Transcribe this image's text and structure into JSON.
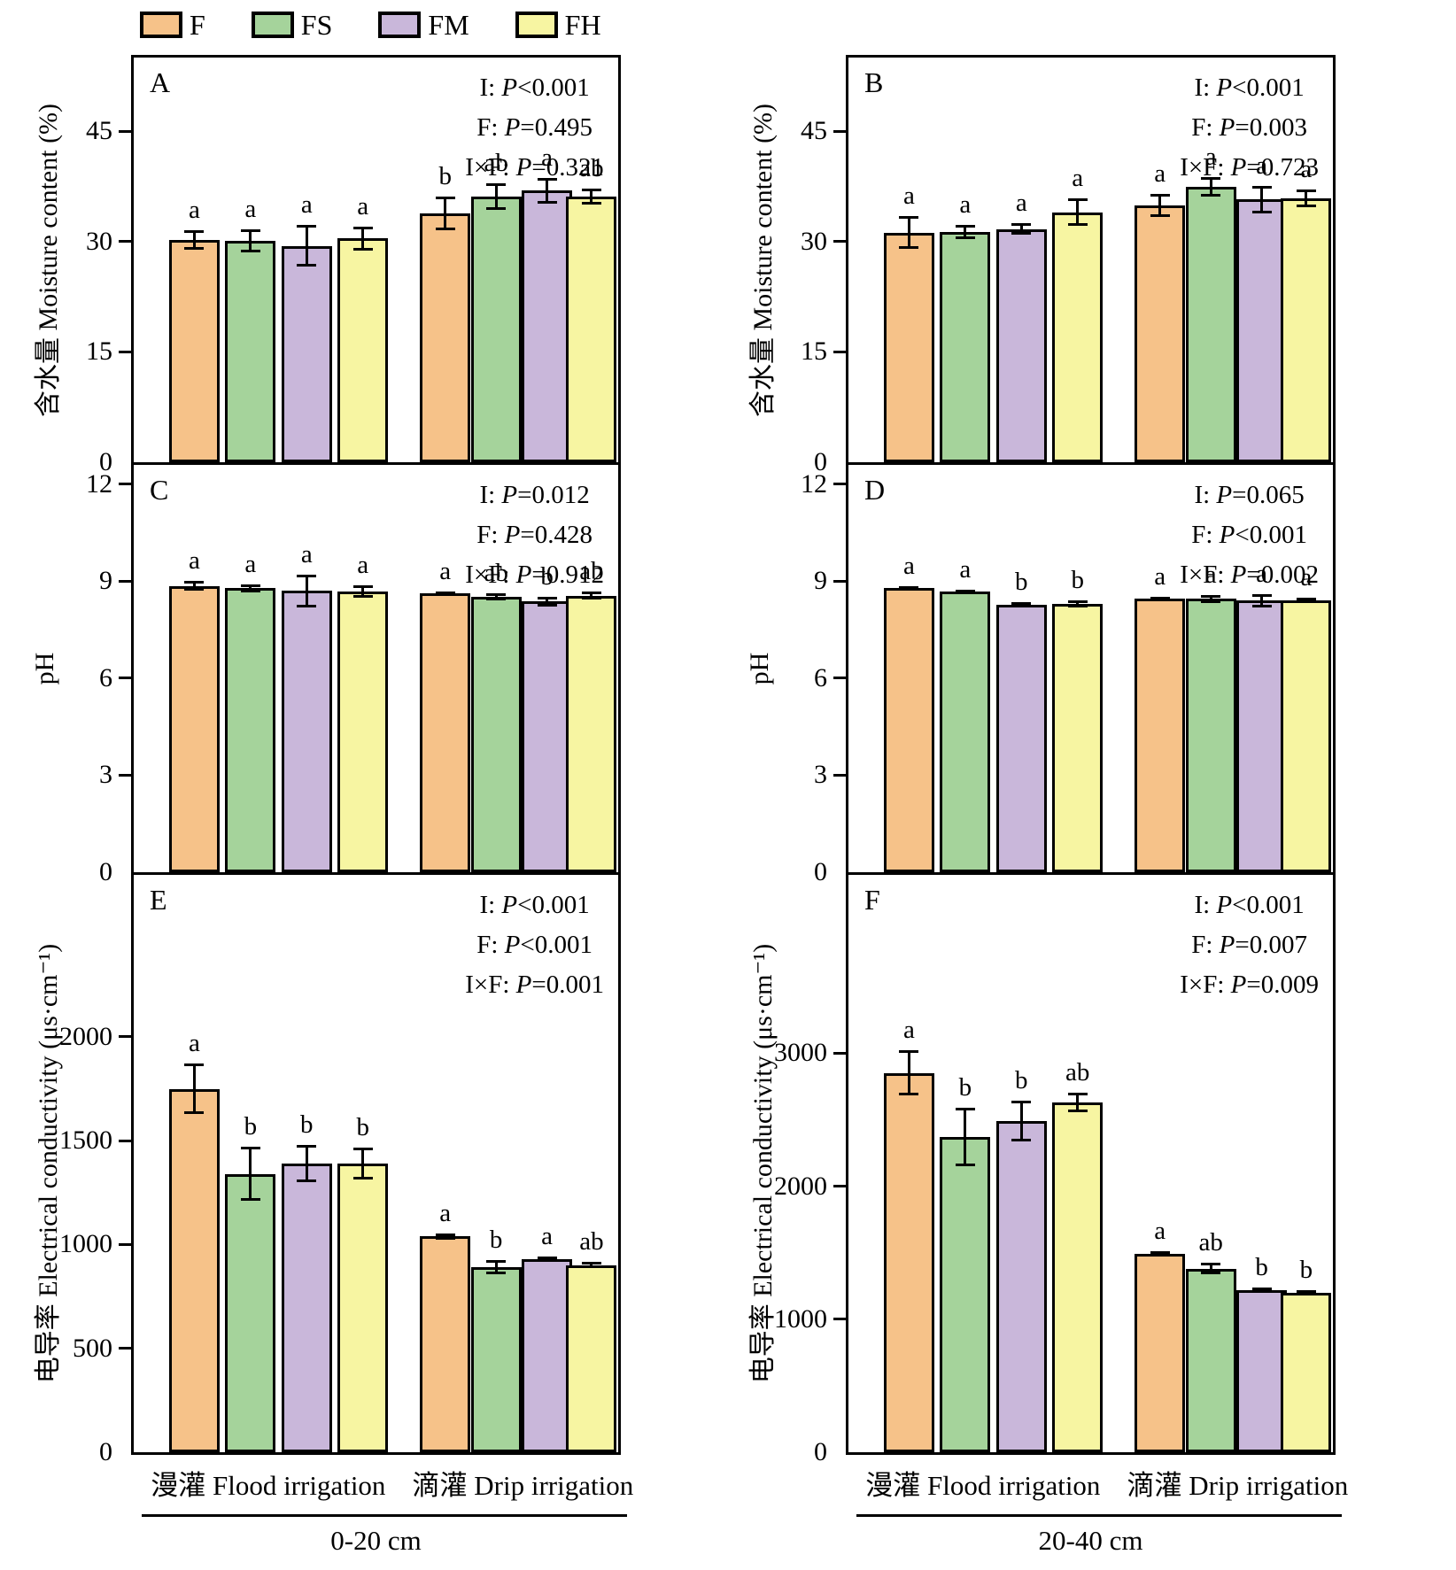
{
  "legend": {
    "items": [
      {
        "label": "F",
        "color": "#F6C289"
      },
      {
        "label": "FS",
        "color": "#A5D39B"
      },
      {
        "label": "FM",
        "color": "#C9B7DA"
      },
      {
        "label": "FH",
        "color": "#F7F5A2"
      }
    ]
  },
  "footer": {
    "columns": [
      {
        "flood": "漫灌 Flood irrigation",
        "drip": "滴灌 Drip irrigation",
        "depth": "0-20 cm"
      },
      {
        "flood": "漫灌 Flood irrigation",
        "drip": "滴灌 Drip irrigation",
        "depth": "20-40 cm"
      }
    ]
  },
  "chart_data": [
    {
      "type": "bar",
      "id": "A",
      "ylabel": "含水量 Moisture content (%)",
      "ymax": 55,
      "yticks": [
        0,
        15,
        30,
        45
      ],
      "stats": [
        "I: P<0.001",
        "F: P=0.495",
        "I×F: P=0.321"
      ],
      "groups": [
        {
          "label": "漫灌 Flood irrigation",
          "bars": [
            {
              "series": "F",
              "value": 30.2,
              "err": 1.3,
              "letter": "a"
            },
            {
              "series": "FS",
              "value": 30.1,
              "err": 1.6,
              "letter": "a"
            },
            {
              "series": "FM",
              "value": 29.4,
              "err": 2.8,
              "letter": "a"
            },
            {
              "series": "FH",
              "value": 30.4,
              "err": 1.6,
              "letter": "a"
            }
          ]
        },
        {
          "label": "滴灌 Drip irrigation",
          "bars": [
            {
              "series": "F",
              "value": 33.8,
              "err": 2.3,
              "letter": "b"
            },
            {
              "series": "FS",
              "value": 36.1,
              "err": 1.8,
              "letter": "ab"
            },
            {
              "series": "FM",
              "value": 36.9,
              "err": 1.7,
              "letter": "a"
            },
            {
              "series": "FH",
              "value": 36.1,
              "err": 1.1,
              "letter": "ab"
            }
          ]
        }
      ]
    },
    {
      "type": "bar",
      "id": "B",
      "ylabel": "含水量 Moisture content (%)",
      "ymax": 55,
      "yticks": [
        0,
        15,
        30,
        45
      ],
      "stats": [
        "I: P<0.001",
        "F: P=0.003",
        "I×F: P=0.723"
      ],
      "groups": [
        {
          "label": "漫灌 Flood irrigation",
          "bars": [
            {
              "series": "F",
              "value": 31.2,
              "err": 2.2,
              "letter": "a"
            },
            {
              "series": "FS",
              "value": 31.3,
              "err": 1.0,
              "letter": "a"
            },
            {
              "series": "FM",
              "value": 31.7,
              "err": 0.8,
              "letter": "a"
            },
            {
              "series": "FH",
              "value": 34.0,
              "err": 1.9,
              "letter": "a"
            }
          ]
        },
        {
          "label": "滴灌 Drip irrigation",
          "bars": [
            {
              "series": "F",
              "value": 34.9,
              "err": 1.6,
              "letter": "a"
            },
            {
              "series": "FS",
              "value": 37.4,
              "err": 1.3,
              "letter": "a"
            },
            {
              "series": "FM",
              "value": 35.7,
              "err": 1.9,
              "letter": "a"
            },
            {
              "series": "FH",
              "value": 35.9,
              "err": 1.2,
              "letter": "a"
            }
          ]
        }
      ]
    },
    {
      "type": "bar",
      "id": "C",
      "ylabel": "pH",
      "ymax": 12.6,
      "yticks": [
        0,
        3,
        6,
        9,
        12
      ],
      "stats": [
        "I: P=0.012",
        "F: P=0.428",
        "I×F: P=0.912"
      ],
      "groups": [
        {
          "label": "漫灌 Flood irrigation",
          "bars": [
            {
              "series": "F",
              "value": 8.85,
              "err": 0.15,
              "letter": "a"
            },
            {
              "series": "FS",
              "value": 8.78,
              "err": 0.12,
              "letter": "a"
            },
            {
              "series": "FM",
              "value": 8.7,
              "err": 0.5,
              "letter": "a"
            },
            {
              "series": "FH",
              "value": 8.68,
              "err": 0.2,
              "letter": "a"
            }
          ]
        },
        {
          "label": "滴灌 Drip irrigation",
          "bars": [
            {
              "series": "F",
              "value": 8.62,
              "err": 0.06,
              "letter": "a"
            },
            {
              "series": "FS",
              "value": 8.52,
              "err": 0.12,
              "letter": "ab"
            },
            {
              "series": "FM",
              "value": 8.38,
              "err": 0.15,
              "letter": "b"
            },
            {
              "series": "FH",
              "value": 8.55,
              "err": 0.12,
              "letter": "ab"
            }
          ]
        }
      ]
    },
    {
      "type": "bar",
      "id": "D",
      "ylabel": "pH",
      "ymax": 12.6,
      "yticks": [
        0,
        3,
        6,
        9,
        12
      ],
      "stats": [
        "I: P=0.065",
        "F: P<0.001",
        "I×F: P=0.002"
      ],
      "groups": [
        {
          "label": "漫灌 Flood irrigation",
          "bars": [
            {
              "series": "F",
              "value": 8.78,
              "err": 0.07,
              "letter": "a"
            },
            {
              "series": "FS",
              "value": 8.68,
              "err": 0.06,
              "letter": "a"
            },
            {
              "series": "FM",
              "value": 8.27,
              "err": 0.09,
              "letter": "b"
            },
            {
              "series": "FH",
              "value": 8.3,
              "err": 0.12,
              "letter": "b"
            }
          ]
        },
        {
          "label": "滴灌 Drip irrigation",
          "bars": [
            {
              "series": "F",
              "value": 8.47,
              "err": 0.06,
              "letter": "a"
            },
            {
              "series": "FS",
              "value": 8.46,
              "err": 0.12,
              "letter": "a"
            },
            {
              "series": "FM",
              "value": 8.4,
              "err": 0.2,
              "letter": "a"
            },
            {
              "series": "FH",
              "value": 8.41,
              "err": 0.09,
              "letter": "a"
            }
          ]
        }
      ]
    },
    {
      "type": "bar",
      "id": "E",
      "ylabel": "电导率 Electrical conductivity (μs·cm⁻¹)",
      "ymax": 2780,
      "yticks": [
        0,
        500,
        1000,
        1500,
        2000
      ],
      "stats": [
        "I: P<0.001",
        "F: P<0.001",
        "I×F: P=0.001"
      ],
      "groups": [
        {
          "label": "漫灌 Flood irrigation",
          "bars": [
            {
              "series": "F",
              "value": 1750,
              "err": 120,
              "letter": "a"
            },
            {
              "series": "FS",
              "value": 1340,
              "err": 130,
              "letter": "b"
            },
            {
              "series": "FM",
              "value": 1390,
              "err": 90,
              "letter": "b"
            },
            {
              "series": "FH",
              "value": 1390,
              "err": 75,
              "letter": "b"
            }
          ]
        },
        {
          "label": "滴灌 Drip irrigation",
          "bars": [
            {
              "series": "F",
              "value": 1040,
              "err": 15,
              "letter": "a"
            },
            {
              "series": "FS",
              "value": 890,
              "err": 35,
              "letter": "b"
            },
            {
              "series": "FM",
              "value": 930,
              "err": 12,
              "letter": "a"
            },
            {
              "series": "FH",
              "value": 900,
              "err": 15,
              "letter": "ab"
            }
          ]
        }
      ]
    },
    {
      "type": "bar",
      "id": "F",
      "ylabel": "电导率 Electrical conductivity (μs·cm⁻¹)",
      "ymax": 4340,
      "yticks": [
        0,
        1000,
        2000,
        3000
      ],
      "stats": [
        "I: P<0.001",
        "F: P=0.007",
        "I×F: P=0.009"
      ],
      "groups": [
        {
          "label": "漫灌 Flood irrigation",
          "bars": [
            {
              "series": "F",
              "value": 2850,
              "err": 170,
              "letter": "a"
            },
            {
              "series": "FS",
              "value": 2370,
              "err": 220,
              "letter": "b"
            },
            {
              "series": "FM",
              "value": 2490,
              "err": 155,
              "letter": "b"
            },
            {
              "series": "FH",
              "value": 2630,
              "err": 75,
              "letter": "ab"
            }
          ]
        },
        {
          "label": "滴灌 Drip irrigation",
          "bars": [
            {
              "series": "F",
              "value": 1490,
              "err": 20,
              "letter": "a"
            },
            {
              "series": "FS",
              "value": 1380,
              "err": 45,
              "letter": "ab"
            },
            {
              "series": "FM",
              "value": 1220,
              "err": 15,
              "letter": "b"
            },
            {
              "series": "FH",
              "value": 1200,
              "err": 15,
              "letter": "b"
            }
          ]
        }
      ]
    }
  ]
}
